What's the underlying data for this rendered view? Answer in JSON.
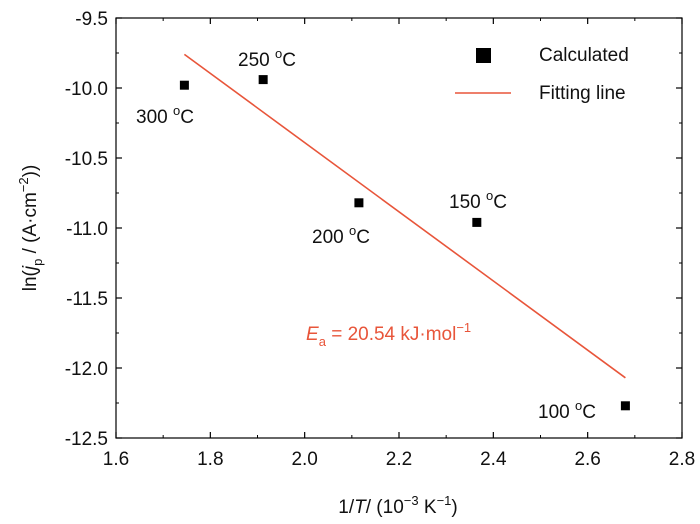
{
  "chart_data": {
    "type": "scatter",
    "title": "",
    "xlabel": {
      "prefix": "1/",
      "italic": "T",
      "rest": "/ (10",
      "exp": "−3",
      "unit": " K",
      "unit_exp": "−1",
      "close": ")"
    },
    "ylabel": {
      "prefix": "ln(",
      "italic": "j",
      "sub": "p",
      "rest": " / (A·cm",
      "exp": "−2",
      "close": "))"
    },
    "xlim": [
      1.6,
      2.8
    ],
    "ylim": [
      -12.5,
      -9.5
    ],
    "xticks": [
      "1.6",
      "1.8",
      "2.0",
      "2.2",
      "2.4",
      "2.6",
      "2.8"
    ],
    "yticks": [
      "-9.5",
      "-10.0",
      "-10.5",
      "-11.0",
      "-11.5",
      "-12.0",
      "-12.5"
    ],
    "series": [
      {
        "name": "Calculated",
        "marker": "square",
        "color": "#000000",
        "points": [
          {
            "x": 1.745,
            "y": -9.98,
            "label": "300 °C"
          },
          {
            "x": 1.912,
            "y": -9.94,
            "label": "250 °C"
          },
          {
            "x": 2.115,
            "y": -10.82,
            "label": "200 °C"
          },
          {
            "x": 2.365,
            "y": -10.96,
            "label": "150 °C"
          },
          {
            "x": 2.68,
            "y": -12.27,
            "label": "100 °C"
          }
        ]
      },
      {
        "name": "Fitting line",
        "type": "line",
        "color": "#e8553a",
        "points": [
          {
            "x": 1.745,
            "y": -9.76
          },
          {
            "x": 2.68,
            "y": -12.07
          }
        ]
      }
    ],
    "annotation": {
      "symbol": "E",
      "sub": "a",
      "text": " = 20.54 kJ·mol",
      "exp": "−1",
      "color": "#e8553a"
    },
    "legend": {
      "position": "top-right"
    },
    "temp_labels": [
      {
        "num": "300 ",
        "deg": "o",
        "unit": "C"
      },
      {
        "num": "250 ",
        "deg": "o",
        "unit": "C"
      },
      {
        "num": "200 ",
        "deg": "o",
        "unit": "C"
      },
      {
        "num": "150 ",
        "deg": "o",
        "unit": "C"
      },
      {
        "num": "100 ",
        "deg": "o",
        "unit": "C"
      }
    ]
  }
}
